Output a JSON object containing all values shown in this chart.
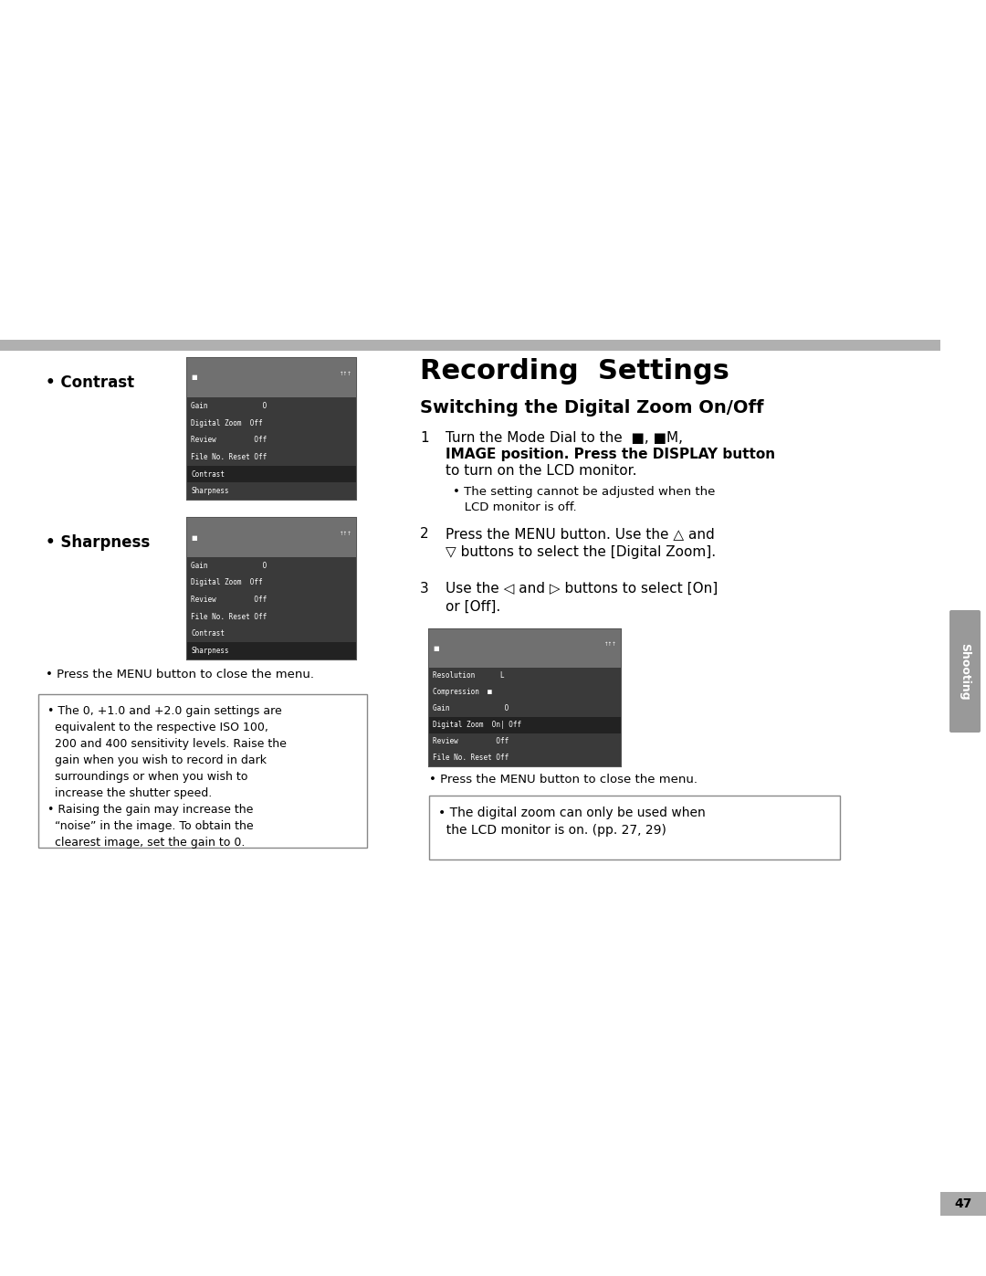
{
  "page_bg": "#ffffff",
  "gray_bar_color": "#b0b0b0",
  "page_number": "47",
  "sidebar_label": "Shooting",
  "section_title": "Recording  Settings",
  "subsection_title": "Switching the Digital Zoom On/Off",
  "bullet_contrast": "• Contrast",
  "bullet_sharpness": "• Sharpness",
  "press_menu_left": "• Press the MENU button to close the menu.",
  "note_left_lines": "• The 0, +1.0 and +2.0 gain settings are\n  equivalent to the respective ISO 100,\n  200 and 400 sensitivity levels. Raise the\n  gain when you wish to record in dark\n  surroundings or when you wish to\n  increase the shutter speed.\n• Raising the gain may increase the\n  “noise” in the image. To obtain the\n  clearest image, set the gain to 0.",
  "step1_line1": "Turn the Mode Dial to the  ■, ■M,",
  "step1_line2": "IMAGE position. Press the DISPLAY button",
  "step1_line3": "to turn on the LCD monitor.",
  "step1_bullet": "• The setting cannot be adjusted when the\n   LCD monitor is off.",
  "step2_text": "Press the MENU button. Use the △ and\n▽ buttons to select the [Digital Zoom].",
  "step3_text": "Use the ◁ and ▷ buttons to select [On]\nor [Off].",
  "press_menu_right": "• Press the MENU button to close the menu.",
  "note_right": "• The digital zoom can only be used when\n  the LCD monitor is on. (pp. 27, 29)",
  "screen1_rows": [
    "Gain             O",
    "Digital Zoom  Off",
    "Review         Off",
    "File No. Reset Off",
    "Contrast",
    "Sharpness"
  ],
  "screen2_rows": [
    "Gain             O",
    "Digital Zoom  Off",
    "Review         Off",
    "File No. Reset Off",
    "Contrast",
    "Sharpness"
  ],
  "screen3_rows": [
    "Resolution      L",
    "Compression  ■",
    "Gain             O",
    "Digital Zoom  On| Off",
    "Review         Off",
    "File No. Reset Off"
  ]
}
